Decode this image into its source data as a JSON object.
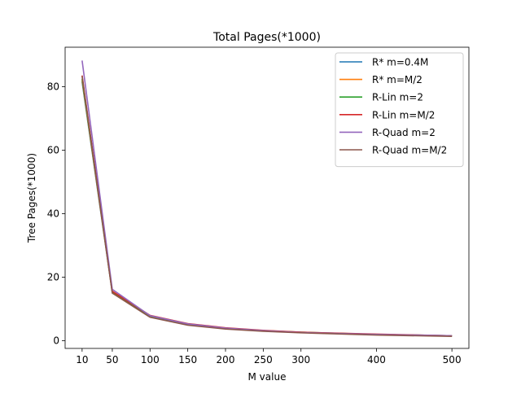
{
  "chart_data": {
    "type": "line",
    "title": "Total Pages(*1000)",
    "xlabel": "M value",
    "ylabel": "Tree Pages(*1000)",
    "xlim": [
      -12.5,
      522.5
    ],
    "ylim": [
      -2.4,
      92.4
    ],
    "xticks": [
      10,
      50,
      100,
      150,
      200,
      250,
      300,
      400,
      500
    ],
    "yticks": [
      0,
      20,
      40,
      60,
      80
    ],
    "x": [
      10,
      50,
      100,
      150,
      200,
      250,
      300,
      400,
      500
    ],
    "legend_position": "upper right",
    "grid": false,
    "series": [
      {
        "name": "R* m=0.4M",
        "color": "#1f77b4",
        "values": [
          81.5,
          15.2,
          7.6,
          5.0,
          3.8,
          3.1,
          2.6,
          1.9,
          1.5
        ]
      },
      {
        "name": "R* m=M/2",
        "color": "#ff7f0e",
        "values": [
          82.0,
          15.3,
          7.7,
          5.1,
          3.9,
          3.1,
          2.6,
          1.9,
          1.5
        ]
      },
      {
        "name": "R-Lin m=2",
        "color": "#2ca02c",
        "values": [
          82.5,
          15.5,
          7.8,
          5.2,
          3.9,
          3.2,
          2.7,
          2.0,
          1.6
        ]
      },
      {
        "name": "R-Lin m=M/2",
        "color": "#d62728",
        "values": [
          83.5,
          15.6,
          8.0,
          5.4,
          4.1,
          3.3,
          2.7,
          2.1,
          1.6
        ]
      },
      {
        "name": "R-Quad m=2",
        "color": "#9467bd",
        "values": [
          88.2,
          16.2,
          7.9,
          5.3,
          4.0,
          3.2,
          2.6,
          2.0,
          1.6
        ]
      },
      {
        "name": "R-Quad m=M/2",
        "color": "#8c564b",
        "values": [
          83.3,
          15.0,
          7.4,
          4.9,
          3.7,
          3.0,
          2.5,
          1.8,
          1.4
        ]
      }
    ]
  }
}
